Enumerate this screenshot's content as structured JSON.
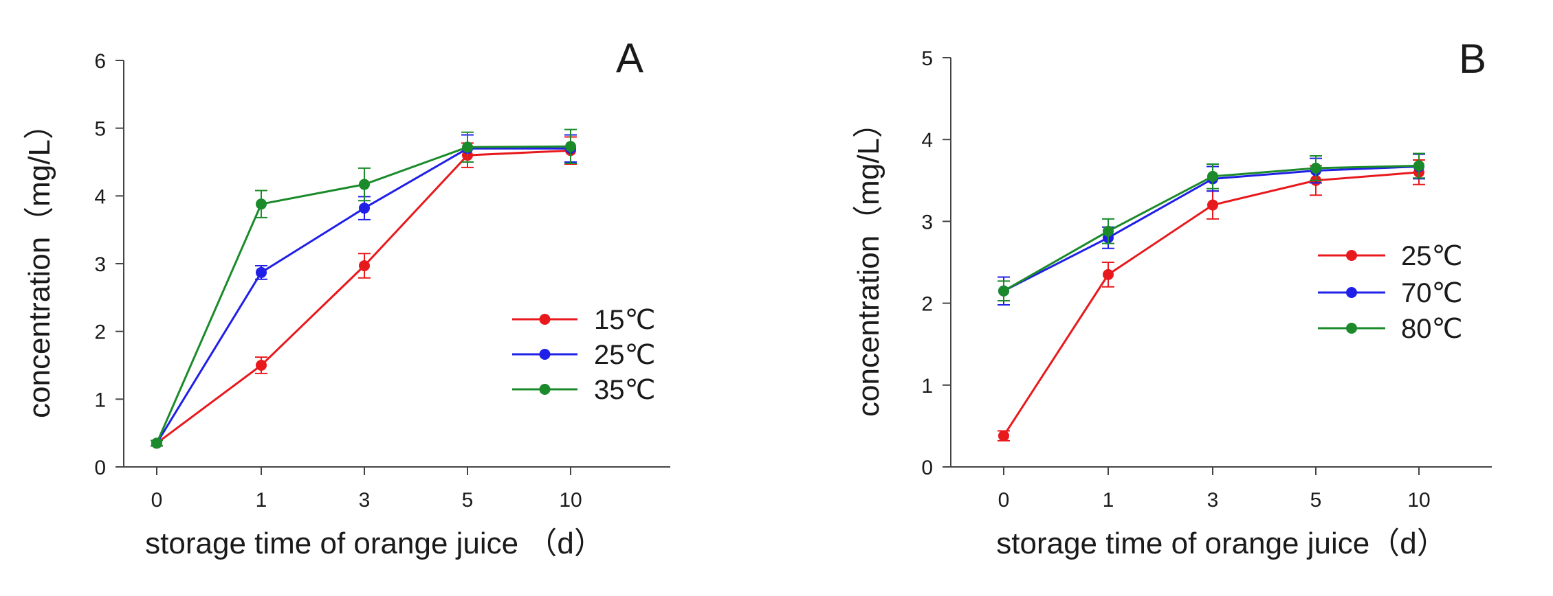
{
  "chart_data": [
    {
      "type": "line",
      "panel": "A",
      "xlabel": "storage time of orange juice （d）",
      "ylabel": "concentration（mg/L）",
      "categories": [
        "0",
        "1",
        "3",
        "5",
        "10"
      ],
      "yticks": [
        "0",
        "1",
        "2",
        "3",
        "4",
        "5",
        "6"
      ],
      "ylim": [
        0,
        6
      ],
      "legend_position": "center-right",
      "series": [
        {
          "name": "15℃",
          "color": "#e8191c",
          "values": [
            0.35,
            1.5,
            2.97,
            4.6,
            4.67
          ],
          "errors": [
            0.04,
            0.12,
            0.18,
            0.18,
            0.2
          ]
        },
        {
          "name": "25℃",
          "color": "#1f1fe8",
          "values": [
            0.35,
            2.87,
            3.82,
            4.7,
            4.7
          ],
          "errors": [
            0.04,
            0.1,
            0.17,
            0.2,
            0.2
          ]
        },
        {
          "name": "35℃",
          "color": "#1a8a2a",
          "values": [
            0.35,
            3.88,
            4.17,
            4.72,
            4.73
          ],
          "errors": [
            0.04,
            0.2,
            0.24,
            0.22,
            0.25
          ]
        }
      ]
    },
    {
      "type": "line",
      "panel": "B",
      "xlabel": "storage time of orange juice（d）",
      "ylabel": "concentration（mg/L）",
      "categories": [
        "0",
        "1",
        "3",
        "5",
        "10"
      ],
      "yticks": [
        "0",
        "1",
        "2",
        "3",
        "4",
        "5"
      ],
      "ylim": [
        0,
        5
      ],
      "legend_position": "center-right",
      "series": [
        {
          "name": "25℃",
          "color": "#e8191c",
          "values": [
            0.38,
            2.35,
            3.2,
            3.5,
            3.6
          ],
          "errors": [
            0.06,
            0.15,
            0.17,
            0.18,
            0.15
          ]
        },
        {
          "name": "70℃",
          "color": "#1f1fe8",
          "values": [
            2.15,
            2.8,
            3.52,
            3.62,
            3.67
          ],
          "errors": [
            0.17,
            0.13,
            0.15,
            0.15,
            0.15
          ]
        },
        {
          "name": "80℃",
          "color": "#1a8a2a",
          "values": [
            2.15,
            2.88,
            3.55,
            3.65,
            3.68
          ],
          "errors": [
            0.12,
            0.15,
            0.15,
            0.15,
            0.15
          ]
        }
      ]
    }
  ]
}
